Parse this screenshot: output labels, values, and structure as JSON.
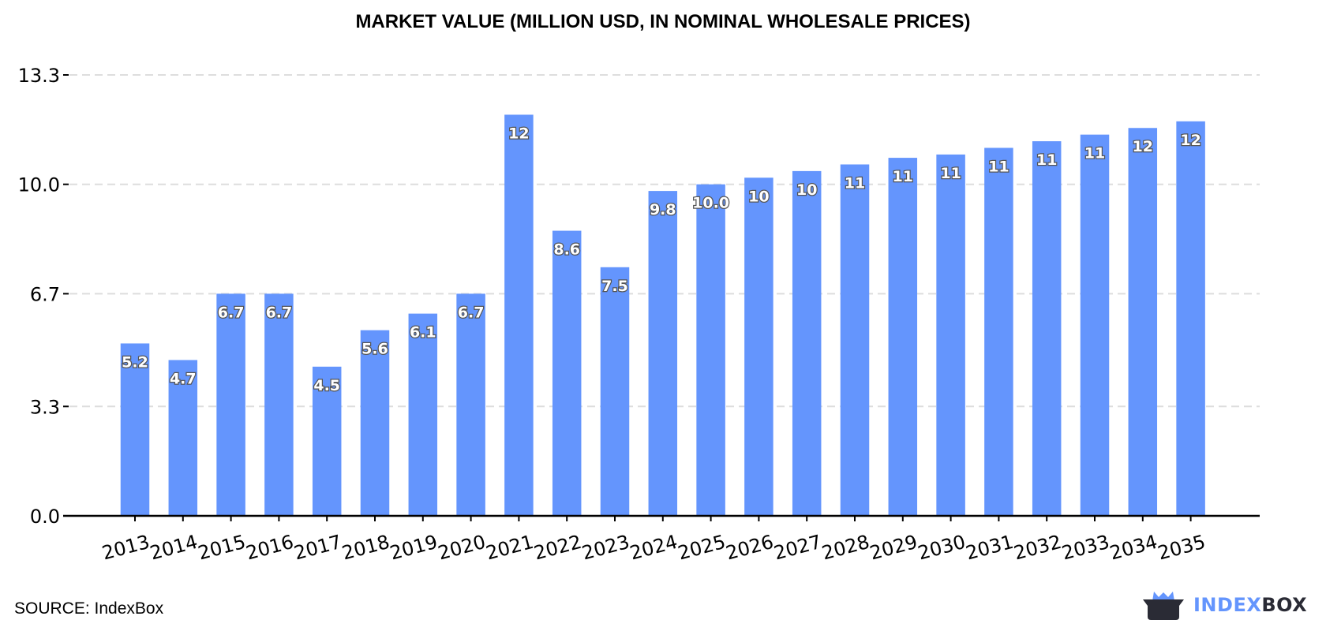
{
  "chart_data": {
    "type": "bar",
    "title": "MARKET VALUE (MILLION USD, IN NOMINAL WHOLESALE PRICES)",
    "xlabel": "",
    "ylabel": "",
    "ylim": [
      0,
      13.3
    ],
    "yticks": [
      "0.0",
      "3.3",
      "6.7",
      "10.0",
      "13.3"
    ],
    "grid": true,
    "categories": [
      "2013",
      "2014",
      "2015",
      "2016",
      "2017",
      "2018",
      "2019",
      "2020",
      "2021",
      "2022",
      "2023",
      "2024",
      "2025",
      "2026",
      "2027",
      "2028",
      "2029",
      "2030",
      "2031",
      "2032",
      "2033",
      "2034",
      "2035"
    ],
    "values": [
      5.2,
      4.7,
      6.7,
      6.7,
      4.5,
      5.6,
      6.1,
      6.7,
      12.1,
      8.6,
      7.5,
      9.8,
      10.0,
      10.2,
      10.4,
      10.6,
      10.8,
      10.9,
      11.1,
      11.3,
      11.5,
      11.7,
      11.9
    ],
    "data_labels": [
      "5.2",
      "4.7",
      "6.7",
      "6.7",
      "4.5",
      "5.6",
      "6.1",
      "6.7",
      "12",
      "8.6",
      "7.5",
      "9.8",
      "10.0",
      "10",
      "10",
      "11",
      "11",
      "11",
      "11",
      "11",
      "11",
      "12",
      "12"
    ],
    "bar_color": "#6495fd"
  },
  "footer": {
    "source": "SOURCE: IndexBox",
    "logo_text_part1": "INDEX",
    "logo_text_part2": "BOX",
    "logo_color_accent": "#6495fd",
    "logo_color_dark": "#2a2b35"
  }
}
